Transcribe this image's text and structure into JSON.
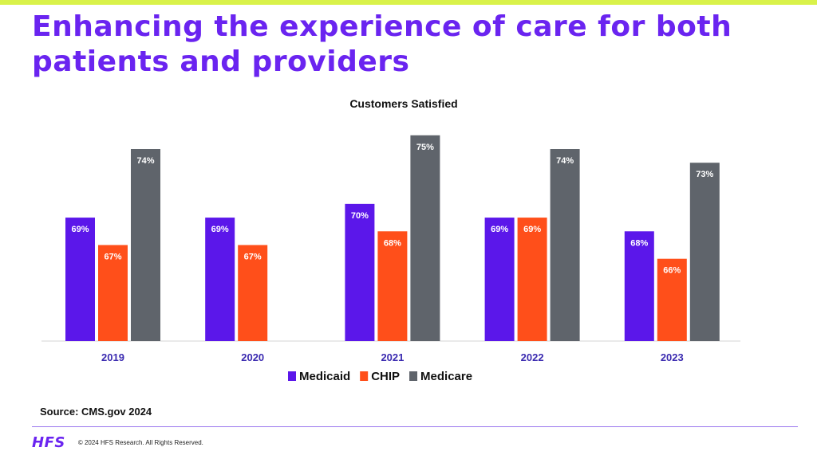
{
  "slide": {
    "title": "Enhancing the experience of care for both patients and providers",
    "source": "Source:  CMS.gov 2024",
    "logo": "HFS",
    "copyright": "© 2024 HFS Research. All Rights Reserved."
  },
  "colors": {
    "accent": "#6a24f0",
    "top_band": "#d9f24a",
    "medicaid": "#5b17ea",
    "chip": "#ff4f1a",
    "medicare": "#5f646b",
    "year_label": "#3a2ab0"
  },
  "chart_data": {
    "type": "bar",
    "title": "Customers Satisfied",
    "xlabel": "",
    "ylabel": "",
    "categories": [
      "2019",
      "2020",
      "2021",
      "2022",
      "2023"
    ],
    "series": [
      {
        "name": "Medicaid",
        "values": [
          69,
          69,
          70,
          69,
          68
        ],
        "labels": [
          "69%",
          "69%",
          "70%",
          "69%",
          "68%"
        ]
      },
      {
        "name": "CHIP",
        "values": [
          67,
          67,
          68,
          69,
          66
        ],
        "labels": [
          "67%",
          "67%",
          "68%",
          "69%",
          "66%"
        ]
      },
      {
        "name": "Medicare",
        "values": [
          74,
          null,
          75,
          74,
          73
        ],
        "labels": [
          "74%",
          null,
          "75%",
          "74%",
          "73%"
        ]
      }
    ],
    "ylim": [
      60,
      76
    ],
    "grid": false,
    "legend": "bottom-center",
    "data_labels": "inside-top"
  }
}
